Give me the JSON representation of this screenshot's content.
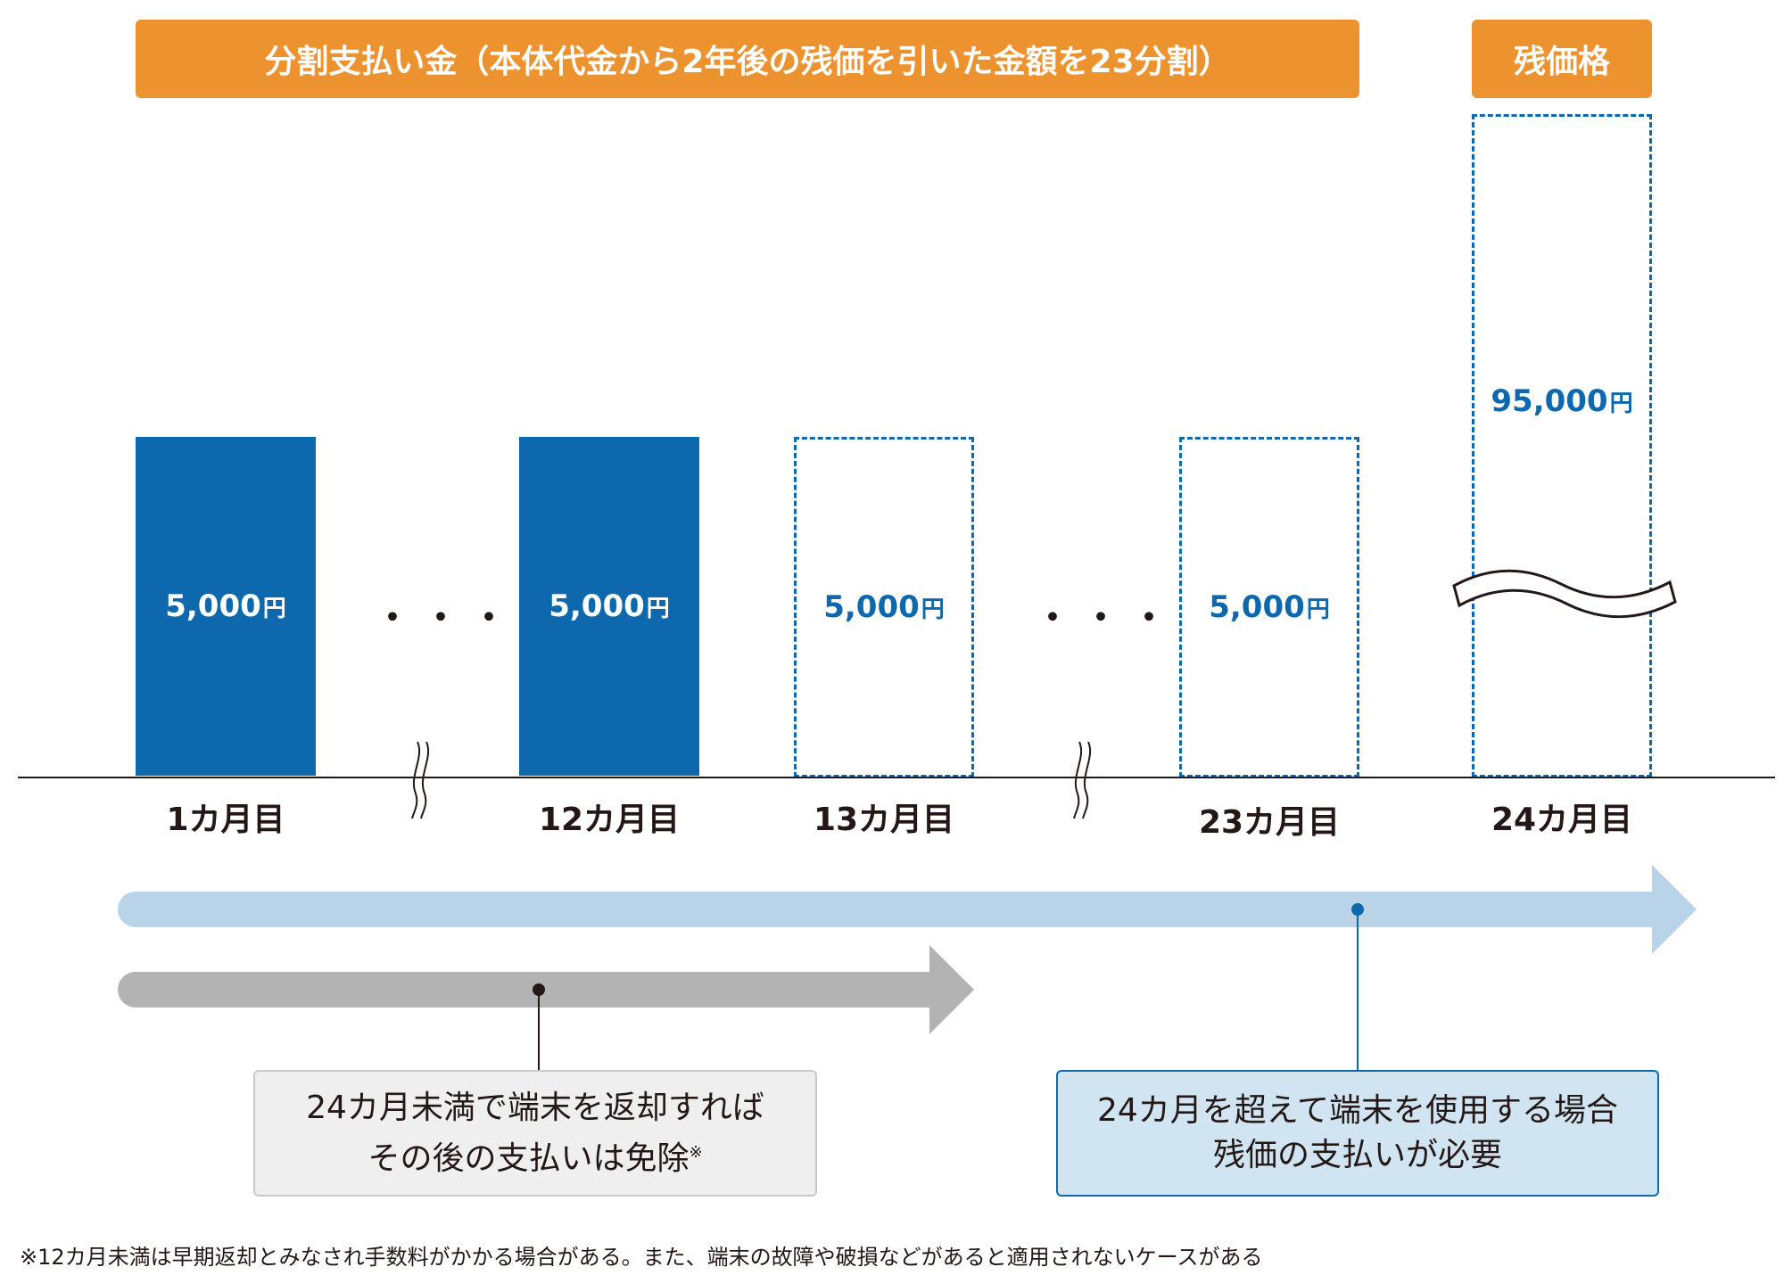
{
  "headers": {
    "installment": "分割支払い金（本体代金から2年後の残価を引いた金額を23分割）",
    "residual": "残価格"
  },
  "bars": [
    {
      "value": "5,000",
      "unit": "円",
      "month": "1カ月目",
      "style": "solid"
    },
    {
      "value": "5,000",
      "unit": "円",
      "month": "12カ月目",
      "style": "solid"
    },
    {
      "value": "5,000",
      "unit": "円",
      "month": "13カ月目",
      "style": "dashed"
    },
    {
      "value": "5,000",
      "unit": "円",
      "month": "23カ月目",
      "style": "dashed"
    },
    {
      "value": "95,000",
      "unit": "円",
      "month": "24カ月目",
      "style": "dashed"
    }
  ],
  "ellipsis": "・・・",
  "notes": {
    "return": {
      "line1": "24カ月未満で端末を返却すれば",
      "line2": "その後の支払いは免除",
      "mark": "※"
    },
    "keep": {
      "line1": "24カ月を超えて端末を使用する場合",
      "line2": "残価の支払いが必要"
    }
  },
  "footnote": "※12カ月未満は早期返却とみなされ手数料がかかる場合がある。また、端末の故障や破損などがあると適用されないケースがある",
  "colors": {
    "orange": "#ec922f",
    "blue": "#0d68ad",
    "lightblue": "#b9d4e9",
    "grey": "#b3b3b3"
  }
}
